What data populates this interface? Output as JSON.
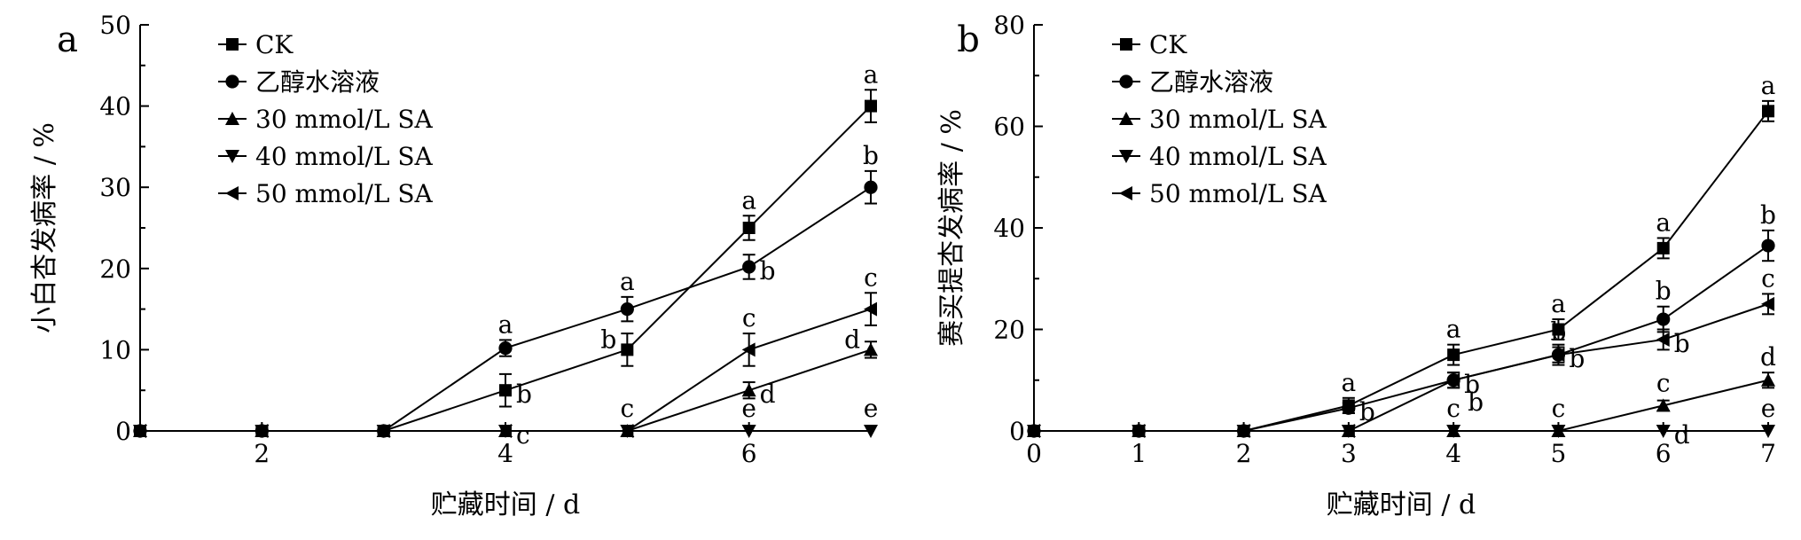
{
  "legend_labels": [
    "CK",
    "乙醇水溶液",
    "30 mmol/L SA",
    "40 mmol/L SA",
    "50 mmol/L SA"
  ],
  "chart_data": [
    {
      "type": "line",
      "panel_label": "a",
      "xlabel": "贮藏时间 / d",
      "ylabel": "小白杏发病率 / %",
      "xlim": [
        1,
        7
      ],
      "ylim": [
        0,
        50
      ],
      "x_ticks": [
        "2",
        "4",
        "6"
      ],
      "y_ticks": [
        "0",
        "10",
        "20",
        "30",
        "40",
        "50"
      ],
      "legend_position": "top-left",
      "x": [
        1,
        2,
        3,
        4,
        5,
        6,
        7
      ],
      "series": [
        {
          "name": "CK",
          "marker": "square",
          "values": [
            0,
            0,
            0,
            5,
            10,
            25,
            40
          ],
          "errors": [
            0,
            0,
            0,
            2,
            2,
            1.5,
            2
          ],
          "letters": [
            "",
            "",
            "",
            "b",
            "b",
            "a",
            "a"
          ],
          "letter_pos": [
            "",
            "",
            "",
            "right",
            "left",
            "above",
            "above"
          ]
        },
        {
          "name": "乙醇水溶液",
          "marker": "circle",
          "values": [
            0,
            0,
            0,
            10.2,
            15,
            20.2,
            30
          ],
          "errors": [
            0,
            0,
            0,
            1,
            1.5,
            1.5,
            2
          ],
          "letters": [
            "",
            "",
            "",
            "a",
            "a",
            "b",
            "b"
          ],
          "letter_pos": [
            "",
            "",
            "",
            "above",
            "above",
            "right",
            "above"
          ]
        },
        {
          "name": "30 mmol/L SA",
          "marker": "triangle-up",
          "values": [
            0,
            0,
            0,
            0,
            0,
            5,
            10
          ],
          "errors": [
            0,
            0,
            0,
            0,
            0,
            1,
            1
          ],
          "letters": [
            "",
            "",
            "",
            "",
            "",
            "d",
            "d"
          ],
          "letter_pos": [
            "",
            "",
            "",
            "",
            "",
            "right",
            "left"
          ]
        },
        {
          "name": "40 mmol/L SA",
          "marker": "triangle-down",
          "values": [
            0,
            0,
            0,
            0,
            0,
            0,
            0
          ],
          "errors": [
            0,
            0,
            0,
            0,
            0,
            0,
            0
          ],
          "letters": [
            "",
            "",
            "",
            "c",
            "c",
            "e",
            "e"
          ],
          "letter_pos": [
            "",
            "",
            "",
            "right",
            "above",
            "above",
            "above"
          ]
        },
        {
          "name": "50 mmol/L SA",
          "marker": "triangle-left",
          "values": [
            0,
            0,
            0,
            0,
            0,
            10,
            15
          ],
          "errors": [
            0,
            0,
            0,
            0,
            0,
            2,
            2
          ],
          "letters": [
            "",
            "",
            "",
            "",
            "",
            "c",
            "c"
          ],
          "letter_pos": [
            "",
            "",
            "",
            "",
            "",
            "above",
            "above"
          ]
        }
      ]
    },
    {
      "type": "line",
      "panel_label": "b",
      "xlabel": "贮藏时间 / d",
      "ylabel": "赛买提杏发病率 / %",
      "xlim": [
        0,
        7
      ],
      "ylim": [
        0,
        80
      ],
      "x_ticks": [
        "0",
        "1",
        "2",
        "3",
        "4",
        "5",
        "6",
        "7"
      ],
      "y_ticks": [
        "0",
        "20",
        "40",
        "60",
        "80"
      ],
      "legend_position": "top-left",
      "x": [
        0,
        1,
        2,
        3,
        4,
        5,
        6,
        7
      ],
      "series": [
        {
          "name": "CK",
          "marker": "square",
          "values": [
            0,
            0,
            0,
            5,
            15,
            20,
            36,
            63
          ],
          "errors": [
            0,
            0,
            0,
            1.5,
            2,
            2,
            2,
            2
          ],
          "letters": [
            "",
            "",
            "",
            "a",
            "a",
            "a",
            "a",
            "a"
          ],
          "letter_pos": [
            "",
            "",
            "",
            "above",
            "above",
            "above",
            "above",
            "above"
          ]
        },
        {
          "name": "乙醇水溶液",
          "marker": "circle",
          "values": [
            0,
            0,
            0,
            4.5,
            10,
            15,
            22,
            36.5
          ],
          "errors": [
            0,
            0,
            0,
            1,
            1.5,
            2,
            2.5,
            3
          ],
          "letters": [
            "",
            "",
            "",
            "b",
            "b",
            "b",
            "b",
            "b"
          ],
          "letter_pos": [
            "",
            "",
            "",
            "right",
            "right",
            "right",
            "above",
            "above"
          ]
        },
        {
          "name": "30 mmol/L SA",
          "marker": "triangle-up",
          "values": [
            0,
            0,
            0,
            0,
            0,
            0,
            5,
            10
          ],
          "errors": [
            0,
            0,
            0,
            0,
            0,
            0,
            1,
            1.5
          ],
          "letters": [
            "",
            "",
            "",
            "",
            "",
            "",
            "c",
            "d"
          ],
          "letter_pos": [
            "",
            "",
            "",
            "",
            "",
            "",
            "above",
            "above"
          ]
        },
        {
          "name": "40 mmol/L SA",
          "marker": "triangle-down",
          "values": [
            0,
            0,
            0,
            0,
            0,
            0,
            0,
            0
          ],
          "errors": [
            0,
            0,
            0,
            0,
            0,
            0,
            0,
            0
          ],
          "letters": [
            "",
            "",
            "",
            "",
            "c",
            "c",
            "d",
            "e"
          ],
          "letter_pos": [
            "",
            "",
            "",
            "",
            "above",
            "above",
            "right",
            "above"
          ]
        },
        {
          "name": "50 mmol/L SA",
          "marker": "triangle-left",
          "values": [
            0,
            0,
            0,
            0,
            10,
            15,
            18,
            25
          ],
          "errors": [
            0,
            0,
            0,
            0,
            1.5,
            1.5,
            2,
            2
          ],
          "letters": [
            "",
            "",
            "",
            "",
            "b",
            "b",
            "b",
            "c"
          ],
          "letter_pos": [
            "",
            "",
            "",
            "",
            "right-low",
            "above",
            "right",
            "above"
          ]
        }
      ]
    }
  ]
}
